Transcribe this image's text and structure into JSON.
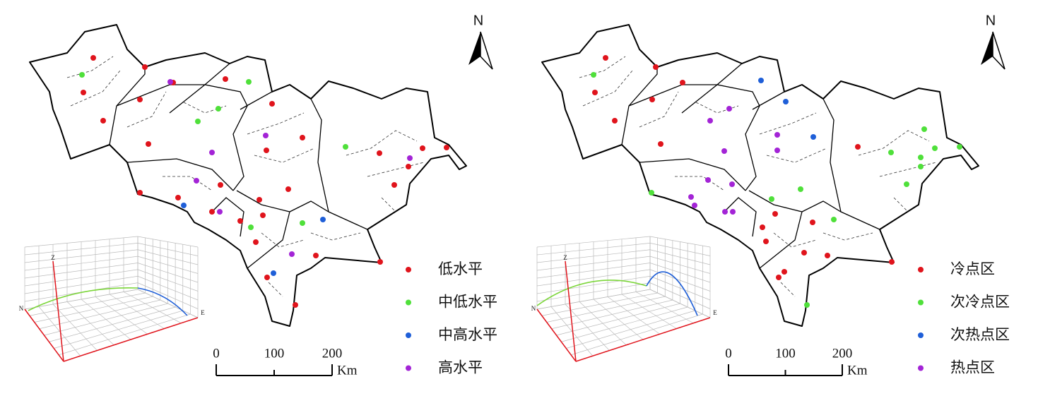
{
  "panels": [
    {
      "north": "N",
      "legend": [
        {
          "label": "低水平",
          "color": "#e0141c"
        },
        {
          "label": "中低水平",
          "color": "#4fe03a"
        },
        {
          "label": "中高水平",
          "color": "#1f5fd8"
        },
        {
          "label": "高水平",
          "color": "#a324d6"
        }
      ],
      "scale_bar": {
        "ticks": [
          0,
          100,
          200
        ],
        "unit": "Km"
      },
      "plot3d": {
        "axes": [
          "Z",
          "N",
          "E"
        ]
      }
    },
    {
      "north": "N",
      "legend": [
        {
          "label": "冷点区",
          "color": "#e0141c"
        },
        {
          "label": "次冷点区",
          "color": "#4fe03a"
        },
        {
          "label": "次热点区",
          "color": "#1f5fd8"
        },
        {
          "label": "热点区",
          "color": "#a324d6"
        }
      ],
      "scale_bar": {
        "ticks": [
          0,
          100,
          200
        ],
        "unit": "Km"
      },
      "plot3d": {
        "axes": [
          "Z",
          "N",
          "E"
        ]
      }
    }
  ]
}
